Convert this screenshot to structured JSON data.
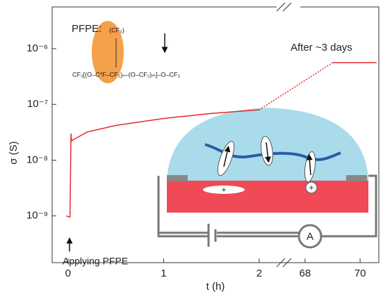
{
  "chart_data": {
    "type": "line",
    "log_y": true,
    "ylim": [
      1.45e-10,
      5.6e-06
    ],
    "yticks": [
      {
        "value": 1e-09,
        "label": "10⁻⁹"
      },
      {
        "value": 1e-08,
        "label": "10⁻⁸"
      },
      {
        "value": 1e-07,
        "label": "10⁻⁷"
      },
      {
        "value": 1e-06,
        "label": "10⁻⁶"
      }
    ],
    "xlim": [
      -0.167,
      70.68
    ],
    "xbreak": [
      2.27,
      67.27
    ],
    "xticks": [
      0,
      1,
      2,
      68,
      70
    ],
    "ylabel": "σ (S)",
    "xlabel": "t (h)",
    "series": [
      {
        "color": "#e8262b",
        "style": "solid",
        "x": [
          -0.02,
          0.02,
          0.03,
          0.035,
          0.05,
          0.2,
          0.5,
          1.0,
          1.5,
          2.0
        ],
        "values": [
          1e-09,
          9.5e-10,
          3e-08,
          2.2e-08,
          2.3e-08,
          3.2e-08,
          4.2e-08,
          5.6e-08,
          6.9e-08,
          8e-08
        ]
      },
      {
        "color": "#e8262b",
        "style": "dotted",
        "x": [
          2.0,
          69
        ],
        "values": [
          8e-08,
          5.6e-07
        ]
      },
      {
        "color": "#e8262b",
        "style": "solid",
        "x": [
          69,
          70.6
        ],
        "values": [
          5.6e-07,
          5.6e-07
        ]
      }
    ],
    "annotations": {
      "pfpe": "PFPE:",
      "side_group": "(CF₃)",
      "formula": "CF₃[(O–C*F–CF₂)ₙ–(O–CF₂)ₘ]–O–CF₃",
      "after": "After ~3 days",
      "applying": "Applying PFPE",
      "ammeter": "A",
      "ion": "+"
    }
  }
}
